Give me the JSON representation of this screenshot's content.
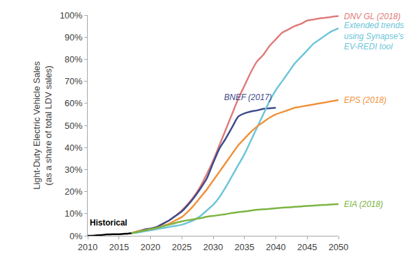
{
  "chart_data": {
    "type": "line",
    "ylabel": [
      "Light-Duty Electric Vehicle Sales",
      "(as a share of total LDV sales)"
    ],
    "xlim": [
      2010,
      2050
    ],
    "xticks": [
      2010,
      2015,
      2020,
      2025,
      2030,
      2035,
      2040,
      2045,
      2050
    ],
    "ylim": [
      0,
      100
    ],
    "yticks": [
      {
        "value": 0,
        "label": "0%"
      },
      {
        "value": 10,
        "label": "10%"
      },
      {
        "value": 20,
        "label": "20%"
      },
      {
        "value": 30,
        "label": "30%"
      },
      {
        "value": 40,
        "label": "40%"
      },
      {
        "value": 50,
        "label": "50%"
      },
      {
        "value": 60,
        "label": "60%"
      },
      {
        "value": 70,
        "label": "70%"
      },
      {
        "value": 80,
        "label": "80%"
      },
      {
        "value": 90,
        "label": "90%"
      },
      {
        "value": 100,
        "label": "100%"
      }
    ],
    "grid": false,
    "series": [
      {
        "name": "Historical",
        "color": "#000000",
        "x": [
          2010,
          2011,
          2012,
          2013,
          2014,
          2015,
          2016,
          2017
        ],
        "values": [
          0,
          0.1,
          0.3,
          0.6,
          0.7,
          0.7,
          0.9,
          1.2
        ]
      },
      {
        "name": "DNV GL (2018)",
        "color": "#e07b7b",
        "x": [
          2017,
          2018,
          2019,
          2020,
          2021,
          2022,
          2023,
          2024,
          2025,
          2026,
          2027,
          2028,
          2029,
          2030,
          2031,
          2032,
          2033,
          2034,
          2035,
          2036,
          2037,
          2038,
          2039,
          2040,
          2041,
          2042,
          2043,
          2044,
          2045,
          2046,
          2047,
          2048,
          2049,
          2050
        ],
        "values": [
          1.2,
          1.8,
          2.5,
          3.2,
          4,
          5.5,
          7,
          9,
          11.5,
          14.5,
          18,
          22.5,
          28,
          34,
          41,
          48,
          55,
          62,
          68,
          74,
          79,
          82,
          86,
          89,
          92,
          93.5,
          95,
          96,
          97.5,
          98,
          98.5,
          98.8,
          99.2,
          99.5
        ]
      },
      {
        "name": "BNEF (2017)",
        "color": "#3b4a8c",
        "x": [
          2017,
          2018,
          2019,
          2020,
          2021,
          2022,
          2023,
          2024,
          2025,
          2026,
          2027,
          2028,
          2029,
          2030,
          2031,
          2032,
          2033,
          2034,
          2035,
          2036,
          2037,
          2038,
          2039,
          2040
        ],
        "values": [
          1.2,
          2,
          2.8,
          3.3,
          4,
          5.5,
          7,
          9,
          11,
          14,
          17.5,
          21.5,
          26,
          33,
          39.5,
          44,
          49,
          54,
          55.5,
          56.3,
          56.8,
          57.5,
          57.8,
          58
        ]
      },
      {
        "name": "Extended trends using Synapse's EV-REDI tool",
        "color": "#6cc5d9",
        "x": [
          2017,
          2018,
          2019,
          2020,
          2021,
          2022,
          2023,
          2024,
          2025,
          2026,
          2027,
          2028,
          2029,
          2030,
          2031,
          2032,
          2033,
          2034,
          2035,
          2036,
          2037,
          2038,
          2039,
          2040,
          2041,
          2042,
          2043,
          2044,
          2045,
          2046,
          2047,
          2048,
          2049,
          2050
        ],
        "values": [
          1.2,
          1.5,
          2,
          2.5,
          3,
          3.5,
          4,
          4.5,
          5,
          6,
          7.2,
          9,
          11.5,
          14,
          17.5,
          22,
          27,
          32,
          37,
          43,
          49,
          55,
          61,
          66,
          70,
          74,
          78,
          81,
          84,
          87,
          89,
          91,
          92.8,
          94
        ]
      },
      {
        "name": "EPS (2018)",
        "color": "#f0913a",
        "x": [
          2017,
          2018,
          2019,
          2020,
          2021,
          2022,
          2023,
          2024,
          2025,
          2026,
          2027,
          2028,
          2029,
          2030,
          2031,
          2032,
          2033,
          2034,
          2035,
          2036,
          2037,
          2038,
          2039,
          2040,
          2041,
          2042,
          2043,
          2044,
          2045,
          2046,
          2047,
          2048,
          2049,
          2050
        ],
        "values": [
          1.2,
          2,
          2.5,
          3,
          3.5,
          4.5,
          5.5,
          7,
          8.5,
          11,
          14,
          17.5,
          21,
          25,
          29,
          33,
          37,
          41,
          44,
          47,
          49.5,
          51.5,
          53.5,
          55,
          56,
          57,
          58,
          58.5,
          59,
          59.5,
          60,
          60.5,
          61,
          61.5
        ]
      },
      {
        "name": "EIA (2018)",
        "color": "#7cb342",
        "x": [
          2017,
          2018,
          2019,
          2020,
          2021,
          2022,
          2023,
          2024,
          2025,
          2026,
          2027,
          2028,
          2029,
          2030,
          2031,
          2032,
          2033,
          2034,
          2035,
          2036,
          2037,
          2038,
          2039,
          2040,
          2041,
          2042,
          2043,
          2044,
          2045,
          2046,
          2047,
          2048,
          2049,
          2050
        ],
        "values": [
          1.2,
          1.8,
          2.3,
          3,
          3.6,
          4.3,
          5,
          5.8,
          6.5,
          7.1,
          7.5,
          8,
          8.6,
          9,
          9.4,
          9.8,
          10.3,
          10.7,
          11,
          11.4,
          11.8,
          12,
          12.2,
          12.5,
          12.7,
          12.9,
          13.1,
          13.3,
          13.5,
          13.7,
          13.9,
          14,
          14.2,
          14.4
        ]
      }
    ]
  }
}
